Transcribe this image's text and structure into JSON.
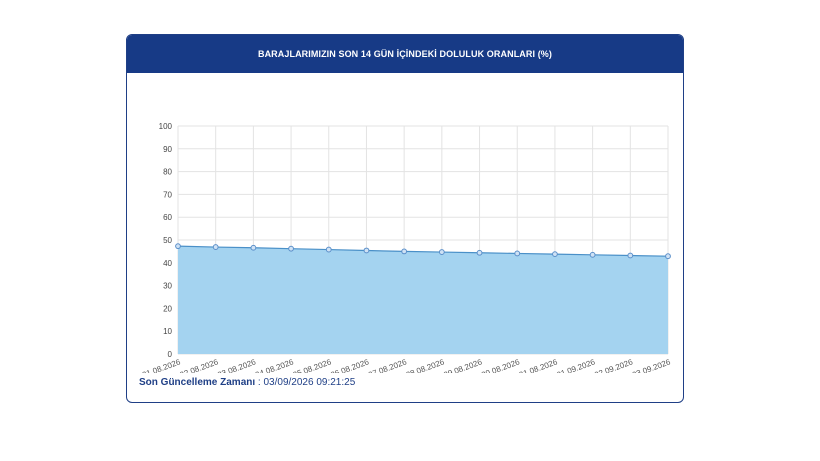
{
  "header": {
    "title": "BARAJLARIMIZIN SON 14 GÜN İÇİNDEKİ DOLULUK ORANLARI (%)"
  },
  "footer": {
    "label": "Son Güncelleme Zamanı",
    "separator": " : ",
    "value": "03/09/2026 09:21:25"
  },
  "colors": {
    "header_bg": "#173a86",
    "area_fill": "#a4d3f0",
    "line": "#4a90c8",
    "marker": "#5b8fc9"
  },
  "chart_data": {
    "type": "area",
    "title": "BARAJLARIMIZIN SON 14 GÜN İÇİNDEKİ DOLULUK ORANLARI (%)",
    "xlabel": "",
    "ylabel": "",
    "ylim": [
      0,
      100
    ],
    "yticks": [
      0,
      10,
      20,
      30,
      40,
      50,
      60,
      70,
      80,
      90,
      100
    ],
    "grid": true,
    "legend": "none",
    "categories": [
      "21.08.2026",
      "22.08.2026",
      "23.08.2026",
      "24.08.2026",
      "25.08.2026",
      "26.08.2026",
      "27.08.2026",
      "28.08.2026",
      "29.08.2026",
      "30.08.2026",
      "31.08.2026",
      "01.09.2026",
      "02.09.2026",
      "03.09.2026"
    ],
    "series": [
      {
        "values": [
          47.3,
          46.9,
          46.6,
          46.2,
          45.8,
          45.4,
          45.0,
          44.7,
          44.4,
          44.1,
          43.8,
          43.5,
          43.2,
          42.9
        ]
      }
    ]
  }
}
